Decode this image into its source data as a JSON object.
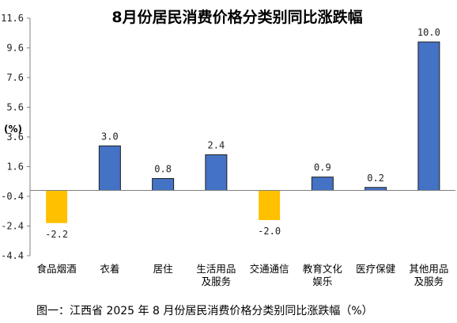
{
  "chart_data": {
    "type": "bar",
    "title": "8月份居民消费价格分类别同比涨跌幅",
    "ylabel": "(%)",
    "caption": "图一：江西省 2025 年 8 月份居民消费价格分类别同比涨跌幅（%）",
    "categories": [
      [
        "食品烟酒"
      ],
      [
        "衣着"
      ],
      [
        "居住"
      ],
      [
        "生活用品",
        "及服务"
      ],
      [
        "交通通信"
      ],
      [
        "教育文化",
        "娱乐"
      ],
      [
        "医疗保健"
      ],
      [
        "其他用品",
        "及服务"
      ]
    ],
    "values": [
      -2.2,
      3.0,
      0.8,
      2.4,
      -2.0,
      0.9,
      0.2,
      10.0
    ],
    "value_labels": [
      "-2.2",
      "3.0",
      "0.8",
      "2.4",
      "-2.0",
      "0.9",
      "0.2",
      "10.0"
    ],
    "yticks": [
      "11.6",
      "9.6",
      "7.6",
      "5.6",
      "3.6",
      "1.6",
      "-0.4",
      "-2.4",
      "-4.4"
    ],
    "ylim": [
      -4.4,
      11.6
    ],
    "grid": false,
    "colors": {
      "positive": "#4472C4",
      "negative": "#FFC000",
      "axis": "#808080"
    }
  }
}
